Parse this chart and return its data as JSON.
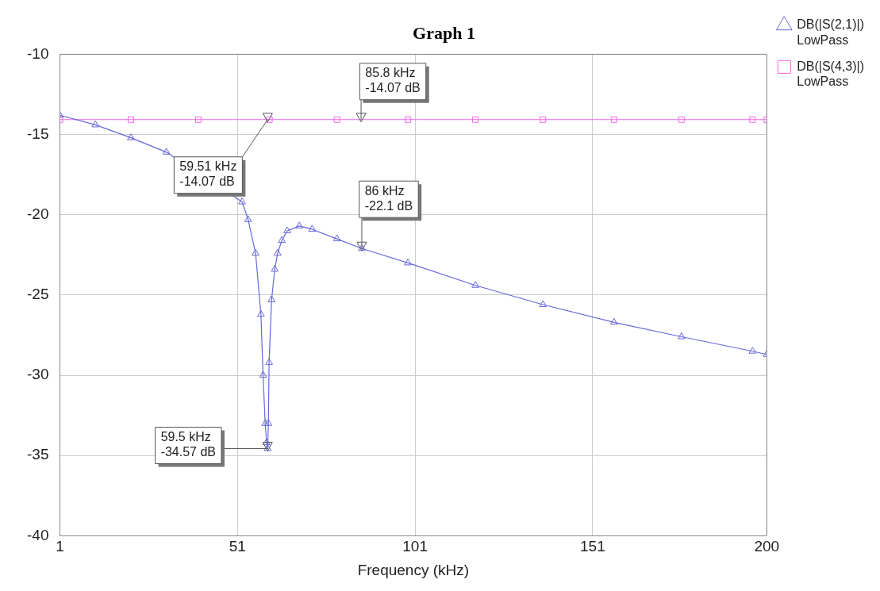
{
  "chart_data": {
    "type": "line",
    "title": "Graph 1",
    "xlabel": "Frequency (kHz)",
    "xlim": [
      1,
      200
    ],
    "xticks": [
      1,
      51,
      101,
      151,
      200
    ],
    "ylim": [
      -40,
      -10
    ],
    "yticks": [
      -10,
      -15,
      -20,
      -25,
      -30,
      -35,
      -40
    ],
    "grid": true,
    "legend": "top right",
    "marker": "triangle",
    "line_style": "solid",
    "series": [
      {
        "name": "DB(|S(2,1)|)\nLowPass",
        "color": "#6666dd",
        "x": [
          1,
          11,
          21,
          31,
          41,
          46,
          51,
          52.3,
          54,
          56.1,
          57.6,
          58.2,
          58.8,
          59.2,
          59.5,
          59.7,
          59.9,
          60.6,
          61.5,
          62.3,
          63.5,
          65,
          68.4,
          72,
          79,
          86,
          99,
          118,
          137,
          157,
          176,
          196,
          200
        ],
        "values": [
          -13.8,
          -14.4,
          -15.2,
          -16.1,
          null,
          null,
          null,
          -19.2,
          -20.3,
          -22.4,
          -26.2,
          -30,
          -33,
          -34.2,
          -34.57,
          -33,
          -29.2,
          -25.3,
          -23.4,
          -22.4,
          -21.6,
          -21,
          -20.7,
          -20.9,
          -21.5,
          -22.1,
          -23,
          -24.4,
          -25.6,
          -26.7,
          -27.6,
          -28.5,
          -28.7
        ]
      },
      {
        "name": "DB(|S(4,3)|)\nLowPass",
        "color": "#ee66ee",
        "marker": "square",
        "x": [
          1,
          21,
          40,
          60,
          79,
          99,
          118,
          137,
          157,
          176,
          196,
          200
        ],
        "values": [
          -14.07,
          -14.07,
          -14.07,
          -14.07,
          -14.07,
          -14.07,
          -14.07,
          -14.07,
          -14.07,
          -14.07,
          -14.07,
          -14.07
        ]
      }
    ],
    "annotations": [
      {
        "text": "59.51 kHz\n-14.07 dB",
        "x": 59.51,
        "y": -14.07
      },
      {
        "text": "85.8 kHz\n-14.07 dB",
        "x": 85.8,
        "y": -14.07
      },
      {
        "text": "86 kHz\n-22.1 dB",
        "x": 86,
        "y": -22.1
      },
      {
        "text": "59.5 kHz\n-34.57 dB",
        "x": 59.5,
        "y": -34.57
      }
    ]
  }
}
